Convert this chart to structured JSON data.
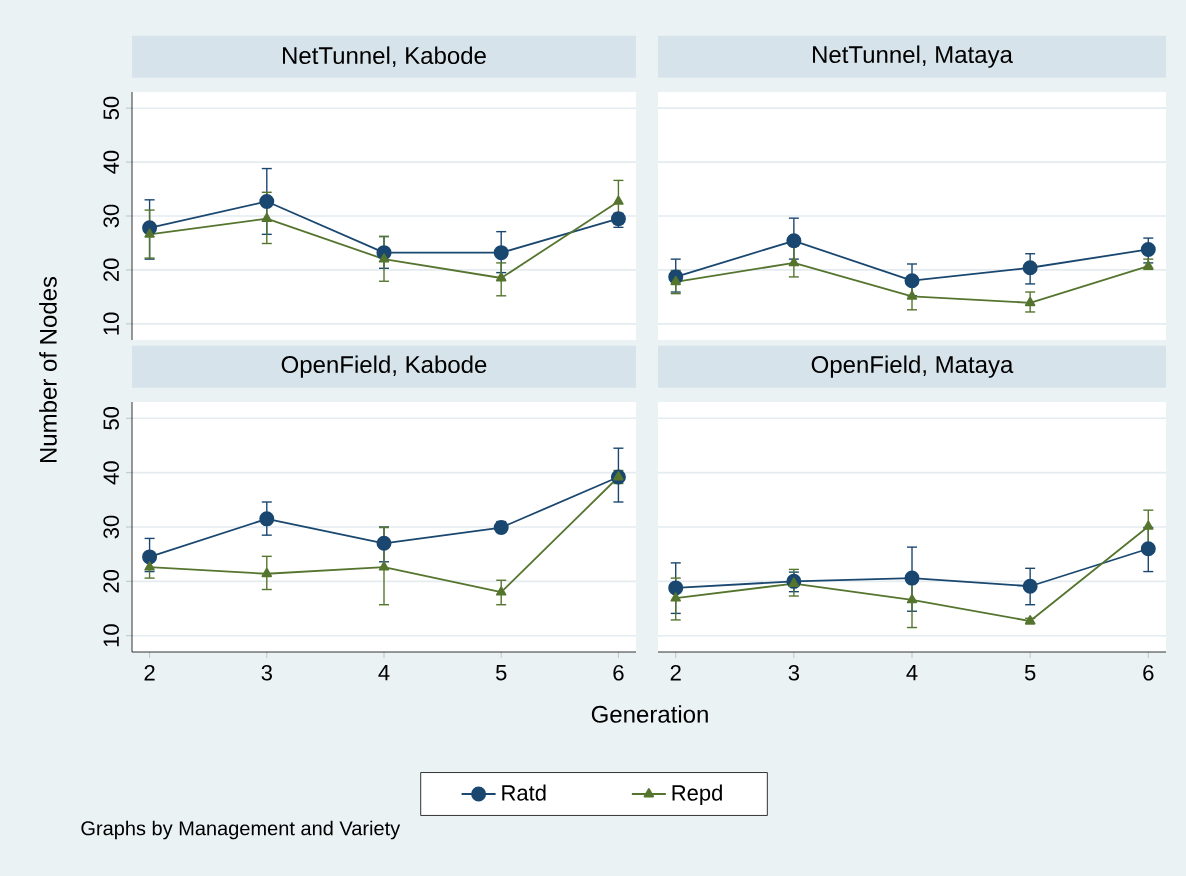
{
  "chart_data": [
    {
      "type": "line",
      "title": "NetTunnel, Kabode",
      "ylabel": "Number of Nodes",
      "xlabel": "Generation",
      "legend": "bottom",
      "annotations": [
        "Graphs by Management and Variety"
      ],
      "x": [
        2,
        3,
        4,
        5,
        6
      ],
      "xlim": [
        1.85,
        6.15
      ],
      "ylim": [
        7,
        53
      ],
      "xticks": [
        2,
        3,
        4,
        5,
        6
      ],
      "yticks": [
        10,
        20,
        30,
        40,
        50
      ],
      "grid": "y",
      "tick_labels": "y",
      "line_style": "solid",
      "series": [
        {
          "name": "Ratd",
          "color": "#1a476f",
          "marker": "circle",
          "values": [
            27.8,
            32.7,
            23.2,
            23.2,
            29.5
          ],
          "errors": [
            [
              22,
              33
            ],
            [
              26.6,
              38.8
            ],
            [
              20.3,
              26.2
            ],
            [
              19.5,
              27.1
            ],
            [
              27.9,
              30.5
            ]
          ]
        },
        {
          "name": "Repd",
          "color": "#55752f",
          "marker": "triangle",
          "values": [
            26.6,
            29.5,
            22,
            18.5,
            32.7
          ],
          "errors": [
            [
              22.2,
              31.1
            ],
            [
              24.9,
              34.4
            ],
            [
              17.9,
              26.2
            ],
            [
              15.2,
              21.3
            ],
            [
              28.5,
              36.6
            ]
          ]
        }
      ]
    },
    {
      "type": "line",
      "title": "NetTunnel, Mataya",
      "x": [
        2,
        3,
        4,
        5,
        6
      ],
      "xlim": [
        1.85,
        6.15
      ],
      "ylim": [
        7,
        53
      ],
      "xticks": [
        2,
        3,
        4,
        5,
        6
      ],
      "yticks": [
        10,
        20,
        30,
        40,
        50
      ],
      "grid": "y",
      "tick_labels": false,
      "line_style": "solid",
      "series": [
        {
          "color": "#1a476f",
          "marker": "circle",
          "values": [
            18.7,
            25.4,
            18,
            20.4,
            23.8
          ],
          "errors": [
            [
              15.9,
              22
            ],
            [
              22,
              29.6
            ],
            [
              15.2,
              21.1
            ],
            [
              17.4,
              23
            ],
            [
              21.3,
              25.9
            ]
          ]
        },
        {
          "color": "#55752f",
          "marker": "triangle",
          "values": [
            17.8,
            21.3,
            15.1,
            13.9,
            20.7
          ],
          "errors": [
            [
              15.6,
              19.9
            ],
            [
              18.7,
              24.4
            ],
            [
              12.6,
              17.7
            ],
            [
              12.2,
              15.9
            ],
            [
              20.1,
              22
            ]
          ]
        }
      ]
    },
    {
      "type": "line",
      "title": "OpenField, Kabode",
      "x": [
        2,
        3,
        4,
        5,
        6
      ],
      "xlim": [
        1.85,
        6.15
      ],
      "ylim": [
        7,
        53
      ],
      "xticks": [
        2,
        3,
        4,
        5,
        6
      ],
      "yticks": [
        10,
        20,
        30,
        40,
        50
      ],
      "grid": "y",
      "line_style": "solid",
      "series": [
        {
          "color": "#1a476f",
          "marker": "circle",
          "values": [
            24.5,
            31.5,
            27,
            29.9,
            39.2
          ],
          "errors": [
            [
              21.8,
              27.9
            ],
            [
              28.5,
              34.6
            ],
            [
              23.6,
              30
            ],
            [
              29,
              31
            ],
            [
              34.6,
              44.5
            ]
          ]
        },
        {
          "color": "#55752f",
          "marker": "triangle",
          "values": [
            22.6,
            21.4,
            22.6,
            18,
            39.2
          ],
          "errors": [
            [
              20.6,
              25
            ],
            [
              18.5,
              24.6
            ],
            [
              15.7,
              29.9
            ],
            [
              15.7,
              20.2
            ],
            [
              38,
              40.4
            ]
          ]
        }
      ]
    },
    {
      "type": "line",
      "title": "OpenField, Mataya",
      "x": [
        2,
        3,
        4,
        5,
        6
      ],
      "xlim": [
        1.85,
        6.15
      ],
      "ylim": [
        7,
        53
      ],
      "xticks": [
        2,
        3,
        4,
        5,
        6
      ],
      "yticks": [
        10,
        20,
        30,
        40,
        50
      ],
      "grid": "y",
      "tick_labels": "x",
      "line_style": "solid",
      "series": [
        {
          "color": "#1a476f",
          "marker": "circle",
          "values": [
            18.8,
            20,
            20.6,
            19.1,
            26
          ],
          "errors": [
            [
              14.1,
              23.4
            ],
            [
              18.1,
              21.7
            ],
            [
              14.5,
              26.3
            ],
            [
              15.7,
              22.4
            ],
            [
              21.8,
              29.9
            ]
          ]
        },
        {
          "color": "#55752f",
          "marker": "triangle",
          "values": [
            16.9,
            19.6,
            16.6,
            12.7,
            30.1
          ],
          "errors": [
            [
              12.9,
              20.6
            ],
            [
              17.3,
              22.2
            ],
            [
              11.5,
              21.4
            ],
            [
              12.2,
              13.2
            ],
            [
              26.7,
              33.1
            ]
          ]
        }
      ]
    }
  ]
}
